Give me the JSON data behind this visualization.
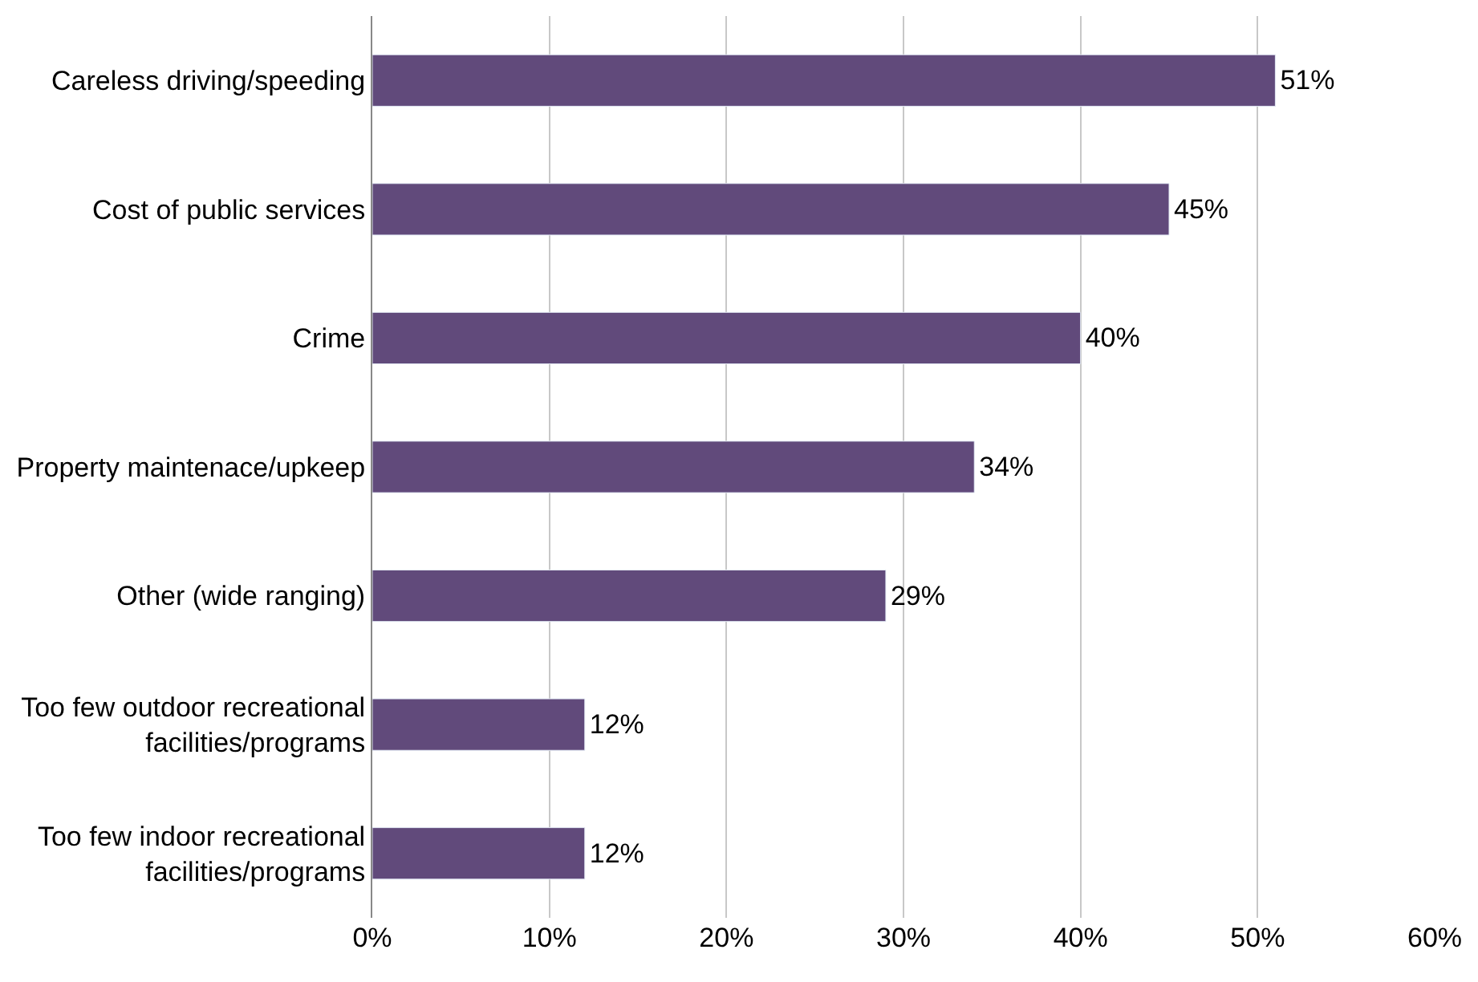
{
  "chart_data": {
    "type": "bar",
    "orientation": "horizontal",
    "categories": [
      "Careless driving/speeding",
      "Cost of public services",
      "Crime",
      "Property maintenace/upkeep",
      "Other (wide ranging)",
      "Too few outdoor recreational facilities/programs",
      "Too few indoor recreational facilities/programs"
    ],
    "values": [
      51,
      45,
      40,
      34,
      29,
      12,
      12
    ],
    "value_labels": [
      "51%",
      "45%",
      "40%",
      "34%",
      "29%",
      "12%",
      "12%"
    ],
    "color": "#614a7b",
    "xlim": [
      0,
      60
    ],
    "xticks": [
      {
        "value": 0,
        "label": "0%"
      },
      {
        "value": 10,
        "label": "10%"
      },
      {
        "value": 20,
        "label": "20%"
      },
      {
        "value": 30,
        "label": "30%"
      },
      {
        "value": 40,
        "label": "40%"
      },
      {
        "value": 50,
        "label": "50%"
      },
      {
        "value": 60,
        "label": "60%"
      }
    ],
    "grid": "x",
    "legend": false
  }
}
